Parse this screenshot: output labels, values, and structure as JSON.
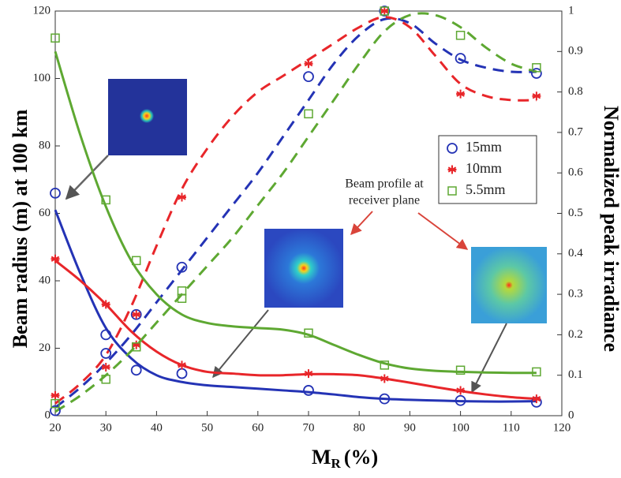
{
  "chart_data": {
    "type": "line",
    "xlabel": {
      "text": "M",
      "subscript": "R",
      "suffix": "(%)"
    },
    "ylabel": "Beam radius (m) at 100 km",
    "y2label": "Normalized peak irradiance",
    "annotation": [
      "Beam profile at",
      "receiver plane"
    ],
    "xlim": [
      20,
      120
    ],
    "xticks": [
      20,
      30,
      40,
      50,
      60,
      70,
      80,
      90,
      100,
      110,
      120
    ],
    "ylim": [
      0,
      120
    ],
    "yticks": [
      0,
      20,
      40,
      60,
      80,
      100,
      120
    ],
    "y2lim": [
      0,
      1
    ],
    "y2ticks": [
      0,
      0.1,
      0.2,
      0.3,
      0.4,
      0.5,
      0.6,
      0.7,
      0.8,
      0.9,
      1
    ],
    "legend": "upper right",
    "series": [
      {
        "name": "15mm",
        "color": "#2433b5",
        "marker": "circle",
        "radius": {
          "x": [
            20,
            30,
            36,
            45,
            70,
            85,
            100,
            115
          ],
          "values": [
            66,
            24,
            13.5,
            12.5,
            7.5,
            5,
            4.5,
            4
          ]
        },
        "irradiance": {
          "x": [
            20,
            30,
            36,
            45,
            70,
            85,
            100,
            115
          ],
          "values": [
            0.0125,
            0.154,
            0.25,
            0.367,
            0.838,
            1,
            0.883,
            0.846
          ]
        },
        "radius_fit": {
          "x": [
            20,
            25,
            30,
            35,
            40,
            45,
            50,
            55,
            60,
            65,
            70,
            75,
            80,
            85,
            90,
            95,
            100,
            105,
            110,
            115
          ],
          "values": [
            61,
            42,
            26,
            17,
            12,
            10,
            9,
            8.5,
            8,
            7.5,
            7,
            6.3,
            5.5,
            5,
            4.7,
            4.5,
            4.3,
            4.2,
            4.2,
            4.3
          ]
        },
        "irradiance_fit": {
          "x": [
            20,
            25,
            30,
            35,
            40,
            45,
            50,
            55,
            60,
            65,
            70,
            75,
            80,
            85,
            90,
            95,
            100,
            105,
            110,
            115
          ],
          "values": [
            0.02,
            0.07,
            0.13,
            0.2,
            0.28,
            0.36,
            0.44,
            0.52,
            0.6,
            0.69,
            0.78,
            0.87,
            0.94,
            0.98,
            0.97,
            0.92,
            0.88,
            0.86,
            0.85,
            0.85
          ]
        }
      },
      {
        "name": "10mm",
        "color": "#e8262a",
        "marker": "star",
        "radius": {
          "x": [
            20,
            30,
            36,
            45,
            70,
            85,
            100,
            115
          ],
          "values": [
            46.5,
            33,
            21,
            15,
            12.5,
            11,
            7.5,
            5
          ]
        },
        "irradiance": {
          "x": [
            20,
            30,
            36,
            45,
            70,
            85,
            100,
            115
          ],
          "values": [
            0.05,
            0.12,
            0.25,
            0.54,
            0.87,
            1,
            0.795,
            0.79
          ]
        },
        "radius_fit": {
          "x": [
            20,
            25,
            30,
            35,
            40,
            45,
            50,
            55,
            60,
            65,
            70,
            75,
            80,
            85,
            90,
            95,
            100,
            105,
            110,
            115
          ],
          "values": [
            46,
            40,
            33,
            25,
            19,
            15,
            13,
            12.5,
            12,
            12,
            12.3,
            12.3,
            12,
            11,
            9.8,
            8.5,
            7.3,
            6.3,
            5.5,
            5
          ]
        },
        "irradiance_fit": {
          "x": [
            20,
            25,
            30,
            35,
            40,
            45,
            50,
            55,
            60,
            65,
            70,
            75,
            80,
            85,
            90,
            95,
            100,
            105,
            110,
            115
          ],
          "values": [
            0.03,
            0.08,
            0.15,
            0.27,
            0.42,
            0.56,
            0.66,
            0.74,
            0.8,
            0.84,
            0.88,
            0.92,
            0.96,
            0.985,
            0.96,
            0.89,
            0.82,
            0.79,
            0.78,
            0.78
          ]
        }
      },
      {
        "name": "5.5mm",
        "color": "#5ea832",
        "marker": "square",
        "radius": {
          "x": [
            20,
            30,
            36,
            45,
            70,
            85,
            100,
            115
          ],
          "values": [
            112,
            64,
            46,
            37,
            24.5,
            15,
            13.5,
            13
          ]
        },
        "irradiance": {
          "x": [
            20,
            30,
            36,
            45,
            70,
            85,
            100,
            115
          ],
          "values": [
            0.03,
            0.09,
            0.17,
            0.29,
            0.746,
            1,
            0.94,
            0.86
          ]
        },
        "radius_fit": {
          "x": [
            20,
            25,
            30,
            35,
            40,
            45,
            50,
            55,
            60,
            65,
            70,
            75,
            80,
            85,
            90,
            95,
            100,
            105,
            110,
            115
          ],
          "values": [
            108,
            83,
            62,
            46,
            36,
            30,
            27.5,
            26.5,
            26,
            25.5,
            24,
            21,
            18,
            15.5,
            14,
            13.3,
            13,
            12.8,
            12.7,
            12.7
          ]
        },
        "irradiance_fit": {
          "x": [
            20,
            25,
            30,
            35,
            40,
            45,
            50,
            55,
            60,
            65,
            70,
            75,
            80,
            85,
            90,
            95,
            100,
            105,
            110,
            115
          ],
          "values": [
            0.01,
            0.05,
            0.1,
            0.16,
            0.23,
            0.3,
            0.37,
            0.44,
            0.52,
            0.6,
            0.69,
            0.78,
            0.87,
            0.95,
            0.99,
            0.99,
            0.96,
            0.91,
            0.87,
            0.85
          ]
        }
      }
    ]
  }
}
